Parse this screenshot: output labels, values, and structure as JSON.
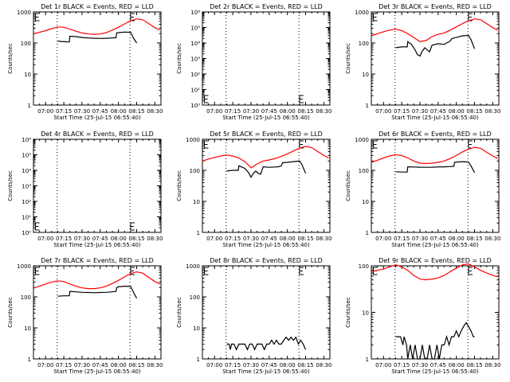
{
  "chart_data": [
    {
      "type": "line",
      "title": "Det 1r BLACK = Events, RED = LLD",
      "xlabel": "Start Time (25-Jul-15 06:55:40)",
      "ylabel": "Counts/sec",
      "xlim": [
        410,
        515
      ],
      "xticks": [
        "07:00",
        "07:15",
        "07:30",
        "07:45",
        "08:00",
        "08:15",
        "08:30"
      ],
      "y_scale": "log",
      "ylim": [
        1,
        1000
      ],
      "yticks": [
        "1",
        "10",
        "100",
        "1000"
      ],
      "vlines": [
        429.5,
        489.5
      ],
      "e_markers": [
        411,
        490
      ],
      "series": [
        {
          "color": "#ff0000",
          "x": [
            410,
            415,
            420,
            425,
            430,
            435,
            440,
            445,
            450,
            455,
            460,
            465,
            470,
            475,
            480,
            485,
            490,
            495,
            500,
            505,
            510,
            514
          ],
          "y": [
            200,
            220,
            250,
            290,
            330,
            320,
            280,
            240,
            210,
            195,
            190,
            195,
            215,
            260,
            320,
            410,
            520,
            600,
            560,
            420,
            310,
            260
          ]
        },
        {
          "color": "#000000",
          "x": [
            430,
            433,
            436,
            438,
            439.5,
            440,
            445,
            450,
            455,
            460,
            465,
            470,
            475,
            478,
            478.5,
            480,
            485,
            490,
            492,
            495
          ],
          "y": [
            115,
            112,
            110,
            108,
            108,
            165,
            160,
            150,
            145,
            142,
            140,
            142,
            145,
            148,
            210,
            215,
            225,
            220,
            150,
            100
          ]
        }
      ]
    },
    {
      "type": "line",
      "title": "Det 2r BLACK = Events, RED = LLD",
      "xlabel": "Start Time (25-Jul-15 06:55:40)",
      "ylabel": "Counts/sec",
      "xlim": [
        410,
        515
      ],
      "xticks": [
        "07:00",
        "07:15",
        "07:30",
        "07:45",
        "08:00",
        "08:15",
        "08:30"
      ],
      "y_scale": "log",
      "ylim": [
        1,
        1000000
      ],
      "yticks": [
        "10⁰",
        "10¹",
        "10²",
        "10³",
        "10⁴",
        "10⁵",
        "10⁶"
      ],
      "vlines": [
        429.5,
        489.5
      ],
      "e_markers": [
        411,
        490
      ],
      "series": []
    },
    {
      "type": "line",
      "title": "Det 3r BLACK = Events, RED = LLD",
      "xlabel": "Start Time (25-Jul-15 06:55:40)",
      "ylabel": "Counts/sec",
      "xlim": [
        410,
        515
      ],
      "xticks": [
        "07:00",
        "07:15",
        "07:30",
        "07:45",
        "08:00",
        "08:15",
        "08:30"
      ],
      "y_scale": "log",
      "ylim": [
        1,
        1000
      ],
      "yticks": [
        "1",
        "10",
        "100",
        "1000"
      ],
      "vlines": [
        429.5,
        489.5
      ],
      "e_markers": [
        411,
        490
      ],
      "series": [
        {
          "color": "#ff0000",
          "x": [
            410,
            415,
            420,
            425,
            430,
            435,
            440,
            445,
            450,
            455,
            460,
            465,
            470,
            475,
            480,
            485,
            490,
            495,
            500,
            505,
            510,
            514
          ],
          "y": [
            170,
            200,
            230,
            260,
            280,
            250,
            200,
            150,
            110,
            120,
            160,
            190,
            210,
            260,
            330,
            420,
            520,
            600,
            560,
            420,
            310,
            260
          ]
        },
        {
          "color": "#000000",
          "x": [
            430,
            435,
            439.5,
            440,
            443,
            446,
            448,
            450,
            452,
            454,
            456,
            458,
            460,
            465,
            470,
            472,
            474,
            475,
            476,
            478,
            480,
            485,
            490,
            492,
            495
          ],
          "y": [
            70,
            75,
            75,
            110,
            90,
            60,
            42,
            38,
            55,
            70,
            60,
            52,
            85,
            95,
            90,
            100,
            110,
            115,
            135,
            145,
            150,
            170,
            175,
            130,
            65
          ]
        }
      ]
    },
    {
      "type": "line",
      "title": "Det 4r BLACK = Events, RED = LLD",
      "xlabel": "Start Time (25-Jul-15 06:55:40)",
      "ylabel": "Counts/sec",
      "xlim": [
        410,
        515
      ],
      "xticks": [
        "07:00",
        "07:15",
        "07:30",
        "07:45",
        "08:00",
        "08:15",
        "08:30"
      ],
      "y_scale": "log",
      "ylim": [
        1,
        1000000
      ],
      "yticks": [
        "10⁰",
        "10¹",
        "10²",
        "10³",
        "10⁴",
        "10⁵",
        "10⁶"
      ],
      "vlines": [
        429.5,
        489.5
      ],
      "e_markers": [
        411,
        490
      ],
      "series": []
    },
    {
      "type": "line",
      "title": "Det 5r BLACK = Events, RED = LLD",
      "xlabel": "Start Time (25-Jul-15 06:55:40)",
      "ylabel": "Counts/sec",
      "xlim": [
        410,
        515
      ],
      "xticks": [
        "07:00",
        "07:15",
        "07:30",
        "07:45",
        "08:00",
        "08:15",
        "08:30"
      ],
      "y_scale": "log",
      "ylim": [
        1,
        1000
      ],
      "yticks": [
        "1",
        "10",
        "100",
        "1000"
      ],
      "vlines": [
        429.5,
        489.5
      ],
      "e_markers": [
        411,
        490
      ],
      "series": [
        {
          "color": "#ff0000",
          "x": [
            410,
            415,
            420,
            425,
            430,
            435,
            440,
            445,
            450,
            455,
            460,
            465,
            470,
            475,
            480,
            485,
            490,
            495,
            500,
            505,
            510,
            514
          ],
          "y": [
            200,
            230,
            260,
            290,
            310,
            290,
            250,
            190,
            120,
            160,
            200,
            215,
            240,
            280,
            340,
            420,
            520,
            590,
            540,
            400,
            300,
            250
          ]
        },
        {
          "color": "#000000",
          "x": [
            430,
            435,
            439.5,
            440,
            445,
            448,
            450,
            452,
            454,
            456,
            458,
            460,
            465,
            470,
            472,
            474,
            475,
            476,
            480,
            485,
            490,
            492,
            495
          ],
          "y": [
            95,
            100,
            100,
            140,
            115,
            85,
            60,
            80,
            95,
            80,
            75,
            130,
            125,
            128,
            130,
            135,
            140,
            175,
            180,
            190,
            200,
            150,
            80
          ]
        }
      ]
    },
    {
      "type": "line",
      "title": "Det 6r BLACK = Events, RED = LLD",
      "xlabel": "Start Time (25-Jul-15 06:55:40)",
      "ylabel": "Counts/sec",
      "xlim": [
        410,
        515
      ],
      "xticks": [
        "07:00",
        "07:15",
        "07:30",
        "07:45",
        "08:00",
        "08:15",
        "08:30"
      ],
      "y_scale": "log",
      "ylim": [
        1,
        1000
      ],
      "yticks": [
        "1",
        "10",
        "100",
        "1000"
      ],
      "vlines": [
        429.5,
        489.5
      ],
      "e_markers": [
        411,
        490
      ],
      "series": [
        {
          "color": "#ff0000",
          "x": [
            410,
            415,
            420,
            425,
            430,
            435,
            440,
            445,
            450,
            455,
            460,
            465,
            470,
            475,
            480,
            485,
            490,
            495,
            500,
            505,
            510,
            514
          ],
          "y": [
            180,
            210,
            250,
            290,
            320,
            300,
            250,
            200,
            170,
            165,
            170,
            180,
            200,
            240,
            300,
            390,
            480,
            550,
            510,
            380,
            290,
            240
          ]
        },
        {
          "color": "#000000",
          "x": [
            430,
            435,
            439.5,
            440,
            445,
            450,
            455,
            460,
            465,
            470,
            475,
            478,
            478.5,
            480,
            485,
            490,
            492,
            495
          ],
          "y": [
            90,
            88,
            88,
            130,
            128,
            126,
            125,
            126,
            128,
            130,
            132,
            135,
            180,
            185,
            190,
            185,
            140,
            85
          ]
        }
      ]
    },
    {
      "type": "line",
      "title": "Det 7r BLACK = Events, RED = LLD",
      "xlabel": "Start Time (25-Jul-15 06:55:40)",
      "ylabel": "Counts/sec",
      "xlim": [
        410,
        515
      ],
      "xticks": [
        "07:00",
        "07:15",
        "07:30",
        "07:45",
        "08:00",
        "08:15",
        "08:30"
      ],
      "y_scale": "log",
      "ylim": [
        1,
        1000
      ],
      "yticks": [
        "1",
        "10",
        "100",
        "1000"
      ],
      "vlines": [
        429.5,
        489.5
      ],
      "e_markers": [
        411,
        490
      ],
      "series": [
        {
          "color": "#ff0000",
          "x": [
            410,
            415,
            420,
            425,
            430,
            435,
            440,
            445,
            450,
            455,
            460,
            465,
            470,
            475,
            480,
            485,
            490,
            495,
            500,
            505,
            510,
            514
          ],
          "y": [
            190,
            220,
            260,
            300,
            330,
            310,
            260,
            220,
            195,
            185,
            185,
            195,
            220,
            270,
            340,
            440,
            560,
            640,
            580,
            420,
            310,
            260
          ]
        },
        {
          "color": "#000000",
          "x": [
            430,
            435,
            439.5,
            440,
            445,
            450,
            455,
            460,
            465,
            470,
            475,
            478,
            478.5,
            480,
            485,
            490,
            492,
            495
          ],
          "y": [
            105,
            108,
            108,
            150,
            145,
            140,
            138,
            136,
            138,
            140,
            145,
            150,
            200,
            210,
            220,
            215,
            150,
            90
          ]
        }
      ]
    },
    {
      "type": "line",
      "title": "Det 8r BLACK = Events, RED = LLD",
      "xlabel": "Start Time (25-Jul-15 06:55:40)",
      "ylabel": "Counts/sec",
      "xlim": [
        410,
        515
      ],
      "xticks": [
        "07:00",
        "07:15",
        "07:30",
        "07:45",
        "08:00",
        "08:15",
        "08:30"
      ],
      "y_scale": "log",
      "ylim": [
        1,
        1000
      ],
      "yticks": [
        "1",
        "10",
        "100",
        "1000"
      ],
      "vlines": [
        429.5,
        489.5
      ],
      "e_markers": [
        411,
        490
      ],
      "series": [
        {
          "color": "#000000",
          "x": [
            430,
            432,
            433,
            434,
            436,
            438,
            440,
            442,
            444,
            445,
            447,
            449,
            451,
            453,
            455,
            457,
            459,
            461,
            463,
            465,
            467,
            469,
            471,
            473,
            475,
            477,
            479,
            481,
            483,
            485,
            487,
            489,
            491,
            493,
            495
          ],
          "y": [
            3,
            3,
            2,
            3,
            3,
            2,
            3,
            3,
            3,
            3,
            2,
            3,
            3,
            2,
            3,
            3,
            3,
            2,
            3,
            3,
            4,
            3,
            4,
            3,
            3,
            4,
            5,
            4,
            5,
            4,
            5,
            3,
            4,
            3,
            2
          ]
        }
      ]
    },
    {
      "type": "line",
      "title": "Det 9r BLACK = Events, RED = LLD",
      "xlabel": "Start Time (25-Jul-15 06:55:40)",
      "ylabel": "Counts/sec",
      "xlim": [
        410,
        515
      ],
      "xticks": [
        "07:00",
        "07:15",
        "07:30",
        "07:45",
        "08:00",
        "08:15",
        "08:30"
      ],
      "y_scale": "log",
      "ylim": [
        1,
        100
      ],
      "yticks": [
        "1",
        "10",
        "100"
      ],
      "vlines": [
        429.5,
        489.5
      ],
      "e_markers": [
        411,
        490
      ],
      "series": [
        {
          "color": "#ff0000",
          "x": [
            410,
            415,
            420,
            425,
            430,
            435,
            440,
            445,
            450,
            455,
            460,
            465,
            470,
            475,
            480,
            485,
            490,
            495,
            500,
            505,
            510,
            514
          ],
          "y": [
            75,
            80,
            85,
            95,
            105,
            95,
            80,
            62,
            52,
            50,
            52,
            55,
            62,
            75,
            90,
            105,
            110,
            95,
            80,
            70,
            62,
            58
          ]
        },
        {
          "color": "#000000",
          "x": [
            430,
            434,
            436,
            437,
            439,
            440,
            442,
            444,
            446,
            448,
            450,
            452,
            454,
            456,
            458,
            460,
            462,
            464,
            466,
            468,
            470,
            472,
            474,
            476,
            478,
            480,
            482,
            484,
            486,
            488,
            490,
            492,
            494,
            495
          ],
          "y": [
            3,
            3,
            2,
            3,
            2,
            1,
            2,
            1,
            2,
            1,
            1,
            2,
            1,
            1,
            2,
            1,
            1,
            2,
            1,
            2,
            2,
            3,
            2,
            3,
            3,
            4,
            3,
            4,
            5,
            6,
            5,
            4,
            3,
            3
          ]
        }
      ]
    }
  ]
}
